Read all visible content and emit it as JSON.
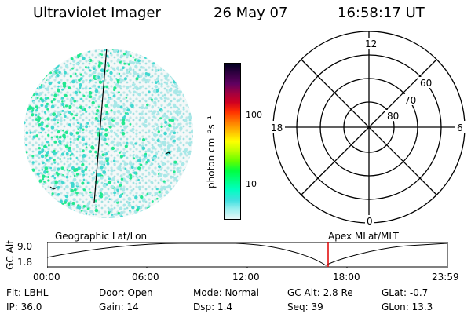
{
  "header": {
    "instrument": "Ultraviolet Imager",
    "date": "26 May 07",
    "time": "16:58:17 UT"
  },
  "colorbar": {
    "label": "photon cm⁻²s⁻¹",
    "ticks": [
      "100",
      "10"
    ],
    "colors": [
      "#000020",
      "#300040",
      "#600060",
      "#a00040",
      "#d00020",
      "#ff3000",
      "#ff8000",
      "#ffc000",
      "#ffff00",
      "#c0ff00",
      "#60ff00",
      "#00ff40",
      "#00ff80",
      "#00ffc0",
      "#40e0e0",
      "#a0f0f0",
      "#e8f8f8"
    ]
  },
  "polar": {
    "hour_labels": {
      "top": "12",
      "left": "18",
      "right": "6",
      "bottom": "0"
    },
    "lat_labels": [
      "60",
      "70",
      "80"
    ]
  },
  "timeline": {
    "left_label": "Geographic Lat/Lon",
    "right_label": "Apex MLat/MLT",
    "y_axis_title": "GC Alt",
    "y_ticks": [
      "9.0",
      "1.8"
    ],
    "x_ticks": [
      "00:00",
      "06:00",
      "12:00",
      "18:00",
      "23:59"
    ],
    "marker_time": "16:58"
  },
  "info": {
    "filter": "Flt: LBHL",
    "door": "Door: Open",
    "mode": "Mode: Normal",
    "gc_alt": "GC Alt: 2.8 Re",
    "glat": "GLat:  -0.7",
    "ip": "IP: 36.0",
    "gain": "Gain: 14",
    "dsp": "Dsp:     1.4",
    "seq": "Seq: 39",
    "glon": "GLon:  13.3"
  }
}
